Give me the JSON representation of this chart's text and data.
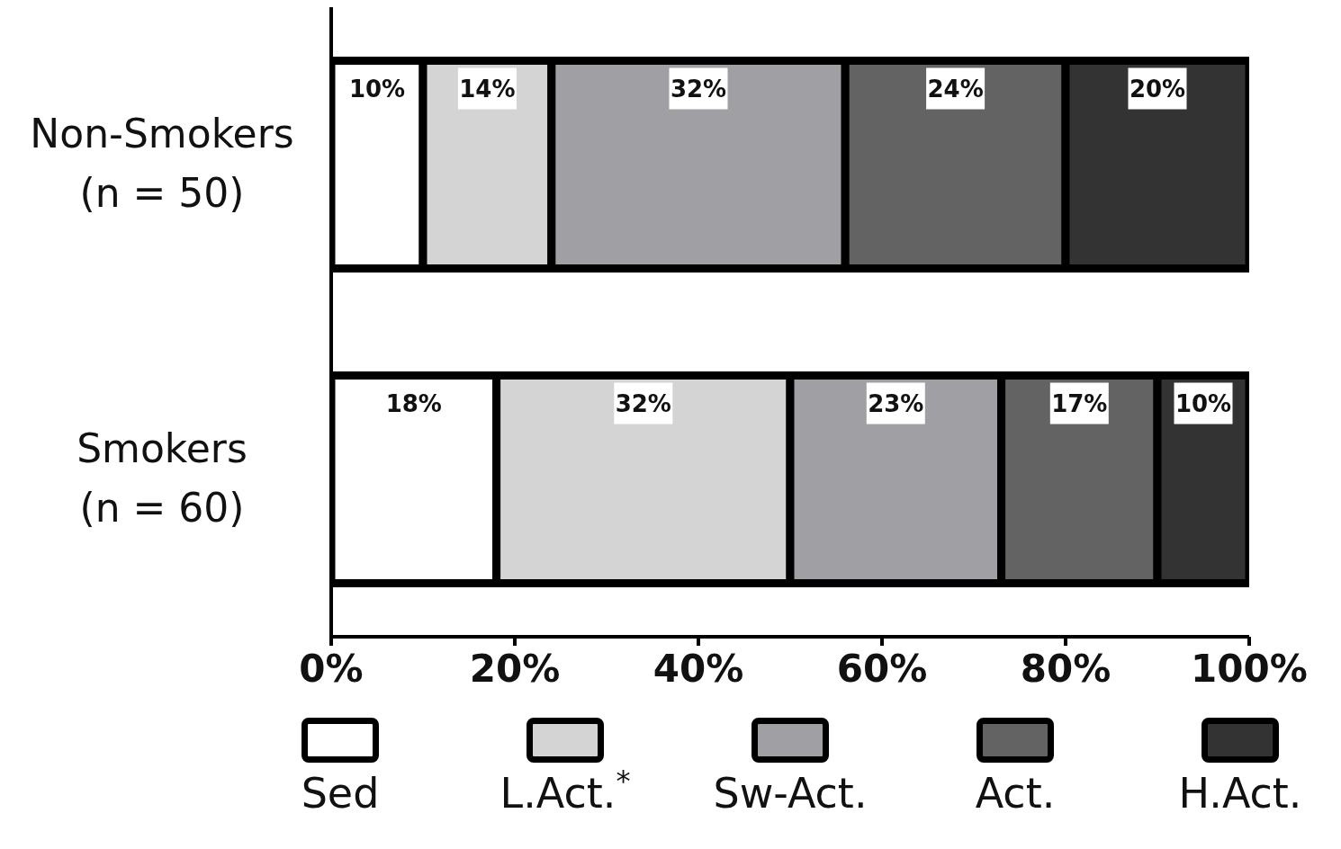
{
  "chart_data": {
    "type": "bar",
    "orientation": "horizontal",
    "stacked": true,
    "categories": [
      "Non-Smokers\n(n = 50)",
      "Smokers\n(n = 60)"
    ],
    "series": [
      {
        "name": "Sed",
        "color": "#ffffff",
        "values": [
          10,
          18
        ],
        "value_labels": [
          "10%",
          "18%"
        ]
      },
      {
        "name": "L.Act.$^{*}$",
        "color": "#d4d4d4",
        "values": [
          14,
          32
        ],
        "value_labels": [
          "14%",
          "32%"
        ]
      },
      {
        "name": "Sw-Act.",
        "color": "#a0a0a4",
        "values": [
          32,
          23
        ],
        "value_labels": [
          "32%",
          "23%"
        ]
      },
      {
        "name": "Act.",
        "color": "#636363",
        "values": [
          24,
          17
        ],
        "value_labels": [
          "24%",
          "17%"
        ]
      },
      {
        "name": "H.Act.",
        "color": "#333333",
        "values": [
          20,
          10
        ],
        "value_labels": [
          "20%",
          "10%"
        ]
      }
    ],
    "xlim": [
      0,
      100
    ],
    "xticks": [
      {
        "value": 0,
        "label": "0%"
      },
      {
        "value": 20,
        "label": "20%"
      },
      {
        "value": 40,
        "label": "40%"
      },
      {
        "value": 60,
        "label": "60%"
      },
      {
        "value": 80,
        "label": "80%"
      },
      {
        "value": 100,
        "label": "100%"
      }
    ],
    "legend": "bottom",
    "grid": false
  }
}
